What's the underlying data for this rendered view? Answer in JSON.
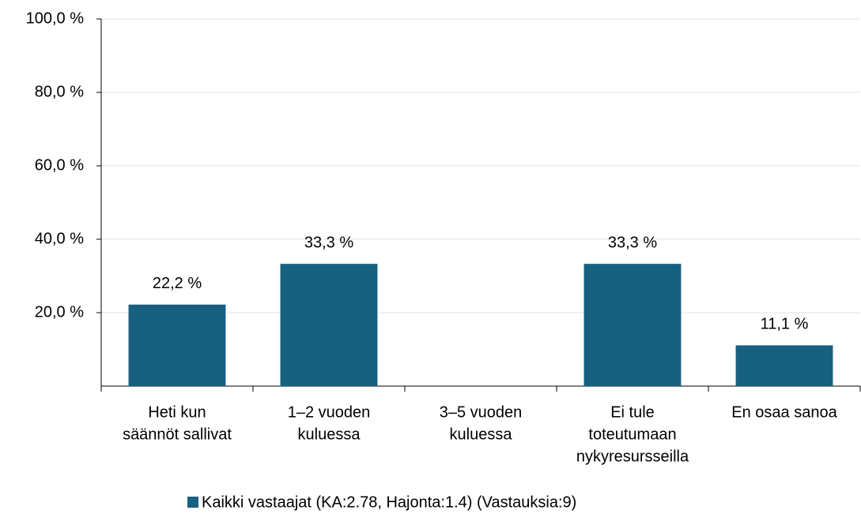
{
  "chart_data": {
    "type": "bar",
    "categories": [
      [
        "Heti kun",
        "säännöt sallivat"
      ],
      [
        "1–2 vuoden",
        "kuluessa"
      ],
      [
        "3–5 vuoden",
        "kuluessa"
      ],
      [
        "Ei tule",
        "toteutumaan",
        "nykyresursseilla"
      ],
      [
        "En osaa sanoa"
      ]
    ],
    "series": [
      {
        "name": "Kaikki vastaajat (KA:2.78, Hajonta:1.4) (Vastauksia:9)",
        "color": "#17607f",
        "values": [
          22.2,
          33.3,
          0,
          33.3,
          11.1
        ],
        "value_labels": [
          "22,2 %",
          "33,3 %",
          null,
          "33,3 %",
          "11,1 %"
        ]
      }
    ],
    "ylim": [
      0,
      100
    ],
    "yticks": [
      {
        "value": 20,
        "label": "20,0 %"
      },
      {
        "value": 40,
        "label": "40,0 %"
      },
      {
        "value": 60,
        "label": "60,0 %"
      },
      {
        "value": 80,
        "label": "80,0 %"
      },
      {
        "value": 100,
        "label": "100,0 %"
      }
    ],
    "grid": true
  }
}
